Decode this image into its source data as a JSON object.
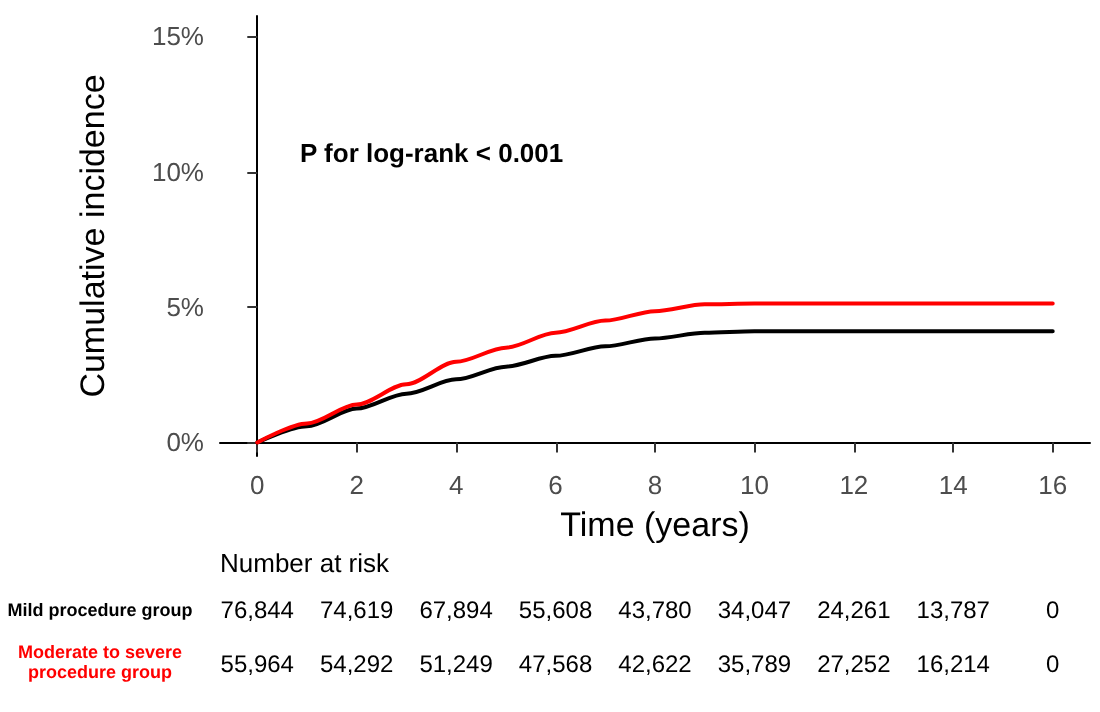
{
  "chart_data": [
    {
      "type": "line",
      "xlabel": "Time (years)",
      "ylabel": "Cumulative incidence",
      "annotations": [
        "P for log-rank < 0.001"
      ],
      "xlim": [
        -0.75,
        16.75
      ],
      "xticks": [
        0,
        2,
        4,
        6,
        8,
        10,
        12,
        14,
        16
      ],
      "ylim": [
        -0.5,
        15.75
      ],
      "yticks": [
        {
          "value": 0,
          "label": "0%"
        },
        {
          "value": 5,
          "label": "5%"
        },
        {
          "value": 10,
          "label": "10%"
        },
        {
          "value": 15,
          "label": "15%"
        }
      ],
      "grid": false,
      "marker": "none",
      "line_style": "solid",
      "series": [
        {
          "color": "#000000",
          "x": [
            0,
            1,
            2,
            3,
            4,
            5,
            6,
            7,
            8,
            9,
            10,
            16
          ],
          "values": [
            0,
            0.6,
            1.25,
            1.8,
            2.33,
            2.8,
            3.2,
            3.55,
            3.84,
            4.05,
            4.11,
            4.11
          ]
        },
        {
          "color": "#ff0000",
          "x": [
            0,
            1,
            2,
            3,
            4,
            5,
            6,
            7,
            8,
            9,
            10,
            16
          ],
          "values": [
            0,
            0.7,
            1.4,
            2.15,
            2.98,
            3.5,
            4.05,
            4.5,
            4.85,
            5.1,
            5.13,
            5.13
          ]
        }
      ]
    },
    {
      "type": "other",
      "title": "Number at risk",
      "y_categories": [
        "Mild procedure group",
        "Moderate to severe procedure group"
      ],
      "colors": [
        "#000000",
        "#ff0000"
      ],
      "cell_labels": [
        [
          "76,844",
          "74,619",
          "67,894",
          "55,608",
          "43,780",
          "34,047",
          "24,261",
          "13,787",
          "0"
        ],
        [
          "55,964",
          "54,292",
          "51,249",
          "47,568",
          "42,622",
          "35,789",
          "27,252",
          "16,214",
          "0"
        ]
      ]
    }
  ]
}
